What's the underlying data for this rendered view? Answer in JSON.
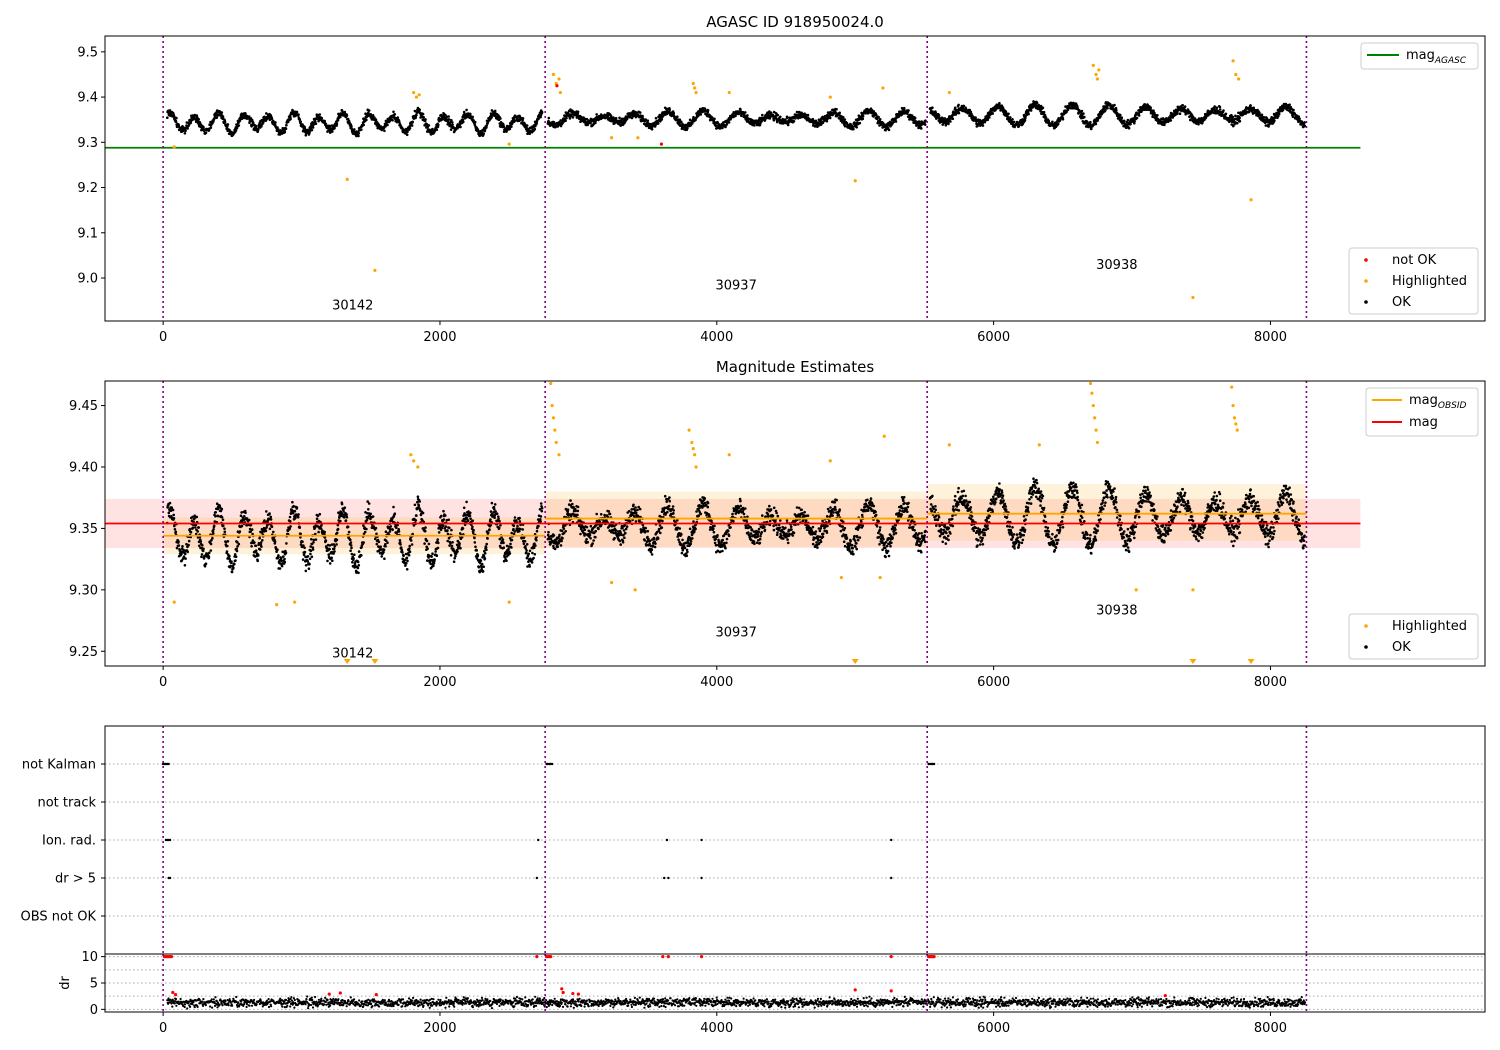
{
  "figure": {
    "series_colors": {
      "ok": "#000000",
      "highlighted": "#FFA500",
      "not_ok": "#FF0000",
      "mag_agasc": "#008000",
      "mag_obsid": "#FFA500",
      "mag": "#FF0000",
      "obsid_boundary": "#800080",
      "flag_grid": "#AAAAAA"
    }
  },
  "chart_data": [
    {
      "type": "scatter",
      "title": "AGASC ID 918950024.0",
      "xlabel": "",
      "ylabel": "",
      "xlim": [
        -420,
        9550
      ],
      "ylim": [
        8.905,
        9.535
      ],
      "xticks": [
        0,
        2000,
        4000,
        6000,
        8000
      ],
      "yticks": [
        9.0,
        9.1,
        9.2,
        9.3,
        9.4,
        9.5
      ],
      "ytick_labels": [
        "9.0",
        "9.1",
        "9.2",
        "9.3",
        "9.4",
        "9.5"
      ],
      "grid": false,
      "obsid_boundaries": [
        0,
        2760,
        5520,
        8260
      ],
      "obsid_labels": [
        {
          "text": "30142",
          "x": 1370,
          "y": 8.93
        },
        {
          "text": "30937",
          "x": 4140,
          "y": 8.975
        },
        {
          "text": "30938",
          "x": 6890,
          "y": 9.02
        }
      ],
      "hlines": [
        {
          "name": "mag",
          "name_sub": "AGASC",
          "y": 9.288,
          "x": [
            -420,
            8650
          ],
          "color": "#008000"
        }
      ],
      "series_ok": {
        "name": "OK",
        "segments": [
          {
            "x0": 30,
            "x1": 2740,
            "base": 9.343,
            "amp": 0.018,
            "period": 180,
            "noise": 0.012
          },
          {
            "x0": 2780,
            "x1": 5510,
            "base": 9.352,
            "amp": 0.012,
            "period": 240,
            "noise": 0.012
          },
          {
            "x0": 5540,
            "x1": 8250,
            "base": 9.36,
            "amp": 0.018,
            "period": 260,
            "noise": 0.013
          }
        ]
      },
      "series_highlighted": {
        "name": "Highlighted",
        "points": [
          [
            80,
            9.29
          ],
          [
            1330,
            9.218
          ],
          [
            1530,
            9.017
          ],
          [
            2500,
            9.296
          ],
          [
            2820,
            9.45
          ],
          [
            2840,
            9.43
          ],
          [
            2860,
            9.44
          ],
          [
            2870,
            9.41
          ],
          [
            3240,
            9.31
          ],
          [
            3430,
            9.31
          ],
          [
            3830,
            9.43
          ],
          [
            3840,
            9.42
          ],
          [
            3850,
            9.41
          ],
          [
            4090,
            9.41
          ],
          [
            4820,
            9.4
          ],
          [
            5000,
            9.215
          ],
          [
            5200,
            9.42
          ],
          [
            5680,
            9.41
          ],
          [
            6720,
            9.47
          ],
          [
            6740,
            9.45
          ],
          [
            6750,
            9.44
          ],
          [
            6760,
            9.46
          ],
          [
            7440,
            8.957
          ],
          [
            7730,
            9.48
          ],
          [
            7750,
            9.45
          ],
          [
            7770,
            9.44
          ],
          [
            7860,
            9.173
          ],
          [
            1810,
            9.41
          ],
          [
            1830,
            9.4
          ],
          [
            1850,
            9.405
          ]
        ]
      },
      "series_not_ok": {
        "name": "not OK",
        "points": [
          [
            3600,
            9.296
          ],
          [
            2845,
            9.425
          ]
        ]
      },
      "legend_top": {
        "position": "top-right",
        "entries": [
          {
            "label": "mag",
            "sub": "AGASC"
          }
        ]
      },
      "legend_bottom": {
        "position": "bottom-right",
        "entries": [
          "not OK",
          "Highlighted",
          "OK"
        ]
      }
    },
    {
      "type": "scatter",
      "title": "Magnitude Estimates",
      "xlabel": "",
      "ylabel": "",
      "xlim": [
        -420,
        9550
      ],
      "ylim": [
        9.238,
        9.47
      ],
      "xticks": [
        0,
        2000,
        4000,
        6000,
        8000
      ],
      "yticks": [
        9.25,
        9.3,
        9.35,
        9.4,
        9.45
      ],
      "ytick_labels": [
        "9.25",
        "9.30",
        "9.35",
        "9.40",
        "9.45"
      ],
      "grid": false,
      "obsid_boundaries": [
        0,
        2760,
        5520,
        8260
      ],
      "obsid_labels": [
        {
          "text": "30142",
          "x": 1370,
          "y": 9.245
        },
        {
          "text": "30937",
          "x": 4140,
          "y": 9.262
        },
        {
          "text": "30938",
          "x": 6890,
          "y": 9.28
        }
      ],
      "bands": [
        {
          "name": "mag",
          "y0": 9.334,
          "y1": 9.374,
          "x": [
            -420,
            8650
          ],
          "color": "#FF0000"
        },
        {
          "name": "mag_obsid 30142",
          "y0": 9.329,
          "y1": 9.359,
          "x": [
            0,
            2760
          ],
          "color": "#FFA500"
        },
        {
          "name": "mag_obsid 30937",
          "y0": 9.335,
          "y1": 9.38,
          "x": [
            2760,
            5520
          ],
          "color": "#FFA500"
        },
        {
          "name": "mag_obsid 30938",
          "y0": 9.34,
          "y1": 9.386,
          "x": [
            5520,
            8260
          ],
          "color": "#FFA500"
        }
      ],
      "hlines": [
        {
          "name": "mag",
          "y": 9.354,
          "x": [
            -420,
            8650
          ],
          "color": "#FF0000"
        },
        {
          "name": "mag_obsid 30142",
          "y": 9.344,
          "x": [
            0,
            2760
          ],
          "color": "#FFA500"
        },
        {
          "name": "mag_obsid 30937",
          "y": 9.358,
          "x": [
            2760,
            5520
          ],
          "color": "#FFA500"
        },
        {
          "name": "mag_obsid 30938",
          "y": 9.362,
          "x": [
            5520,
            8260
          ],
          "color": "#FFA500"
        }
      ],
      "series_ok": {
        "name": "OK",
        "segments": [
          {
            "x0": 30,
            "x1": 2740,
            "base": 9.343,
            "amp": 0.018,
            "period": 180,
            "noise": 0.012
          },
          {
            "x0": 2780,
            "x1": 5510,
            "base": 9.352,
            "amp": 0.012,
            "period": 240,
            "noise": 0.012
          },
          {
            "x0": 5540,
            "x1": 8250,
            "base": 9.36,
            "amp": 0.018,
            "period": 260,
            "noise": 0.013
          }
        ]
      },
      "series_highlighted": {
        "name": "Highlighted",
        "points": [
          [
            80,
            9.29
          ],
          [
            820,
            9.288
          ],
          [
            950,
            9.29
          ],
          [
            2500,
            9.29
          ],
          [
            1790,
            9.41
          ],
          [
            1810,
            9.405
          ],
          [
            1840,
            9.4
          ],
          [
            2800,
            9.468
          ],
          [
            2810,
            9.45
          ],
          [
            2820,
            9.44
          ],
          [
            2830,
            9.43
          ],
          [
            2840,
            9.42
          ],
          [
            2860,
            9.41
          ],
          [
            3240,
            9.306
          ],
          [
            3410,
            9.3
          ],
          [
            3800,
            9.43
          ],
          [
            3820,
            9.42
          ],
          [
            3830,
            9.415
          ],
          [
            3840,
            9.41
          ],
          [
            3850,
            9.4
          ],
          [
            4090,
            9.41
          ],
          [
            4820,
            9.405
          ],
          [
            4900,
            9.31
          ],
          [
            5180,
            9.31
          ],
          [
            5210,
            9.425
          ],
          [
            5680,
            9.418
          ],
          [
            6330,
            9.418
          ],
          [
            6700,
            9.468
          ],
          [
            6710,
            9.46
          ],
          [
            6720,
            9.45
          ],
          [
            6730,
            9.44
          ],
          [
            6740,
            9.43
          ],
          [
            6750,
            9.42
          ],
          [
            7030,
            9.3
          ],
          [
            7440,
            9.3
          ],
          [
            7720,
            9.465
          ],
          [
            7730,
            9.45
          ],
          [
            7740,
            9.44
          ],
          [
            7750,
            9.435
          ],
          [
            7760,
            9.43
          ]
        ]
      },
      "offscale_markers": [
        1330,
        1530,
        5000,
        7440,
        7860
      ],
      "legend_top": {
        "position": "top-right",
        "entries": [
          {
            "label": "mag",
            "sub": "OBSID"
          },
          {
            "label": "mag",
            "sub": ""
          }
        ]
      },
      "legend_bottom": {
        "position": "bottom-right",
        "entries": [
          "Highlighted",
          "OK"
        ]
      }
    },
    {
      "type": "scatter",
      "title": "",
      "xlabel": "",
      "ylabel": "",
      "xlim": [
        -420,
        9550
      ],
      "flag_rows": [
        "not Kalman",
        "not track",
        "Ion. rad.",
        "dr > 5",
        "OBS not OK"
      ],
      "flag_points": [
        {
          "row": "not Kalman",
          "x": [
            0,
            10,
            20,
            30,
            40,
            2770,
            2780,
            2790,
            2800,
            2810,
            5530,
            5540,
            5550,
            5560,
            5570
          ]
        },
        {
          "row": "Ion. rad.",
          "x": [
            20,
            30,
            40,
            50,
            2710,
            3640,
            3890,
            5260
          ]
        },
        {
          "row": "dr > 5",
          "x": [
            40,
            50,
            2700,
            3620,
            3650,
            3890,
            5260
          ]
        }
      ],
      "obsid_boundaries": [
        0,
        2760,
        5520,
        8260
      ]
    },
    {
      "type": "scatter",
      "title": "",
      "xlabel": "",
      "ylabel": "dr",
      "xlim": [
        -420,
        9550
      ],
      "ylim": [
        -0.5,
        10.5
      ],
      "xticks": [
        0,
        2000,
        4000,
        6000,
        8000
      ],
      "yticks": [
        0,
        5,
        10
      ],
      "ytick_labels": [
        "0",
        "5",
        "10"
      ],
      "obsid_boundaries": [
        0,
        2760,
        5520,
        8260
      ],
      "series_ok": {
        "name": "OK",
        "x0": 30,
        "x1": 8250,
        "base": 1.3,
        "noise": 0.7
      },
      "series_not_ok": {
        "name": "not OK",
        "points": [
          [
            10,
            10
          ],
          [
            20,
            10
          ],
          [
            30,
            10
          ],
          [
            40,
            10
          ],
          [
            50,
            10
          ],
          [
            60,
            10
          ],
          [
            2700,
            10
          ],
          [
            2770,
            10
          ],
          [
            2780,
            10
          ],
          [
            2790,
            10
          ],
          [
            2800,
            10
          ],
          [
            3610,
            10
          ],
          [
            3650,
            10
          ],
          [
            3890,
            10
          ],
          [
            5260,
            10
          ],
          [
            5530,
            10
          ],
          [
            5540,
            10
          ],
          [
            5550,
            10
          ],
          [
            5560,
            10
          ],
          [
            5570,
            10
          ],
          [
            70,
            3.2
          ],
          [
            90,
            2.8
          ],
          [
            1200,
            2.9
          ],
          [
            1280,
            3.1
          ],
          [
            1540,
            2.8
          ],
          [
            2880,
            3.9
          ],
          [
            2890,
            3.2
          ],
          [
            2960,
            3.0
          ],
          [
            3000,
            2.9
          ],
          [
            5000,
            3.7
          ],
          [
            5260,
            3.5
          ],
          [
            7240,
            2.6
          ]
        ]
      }
    }
  ]
}
